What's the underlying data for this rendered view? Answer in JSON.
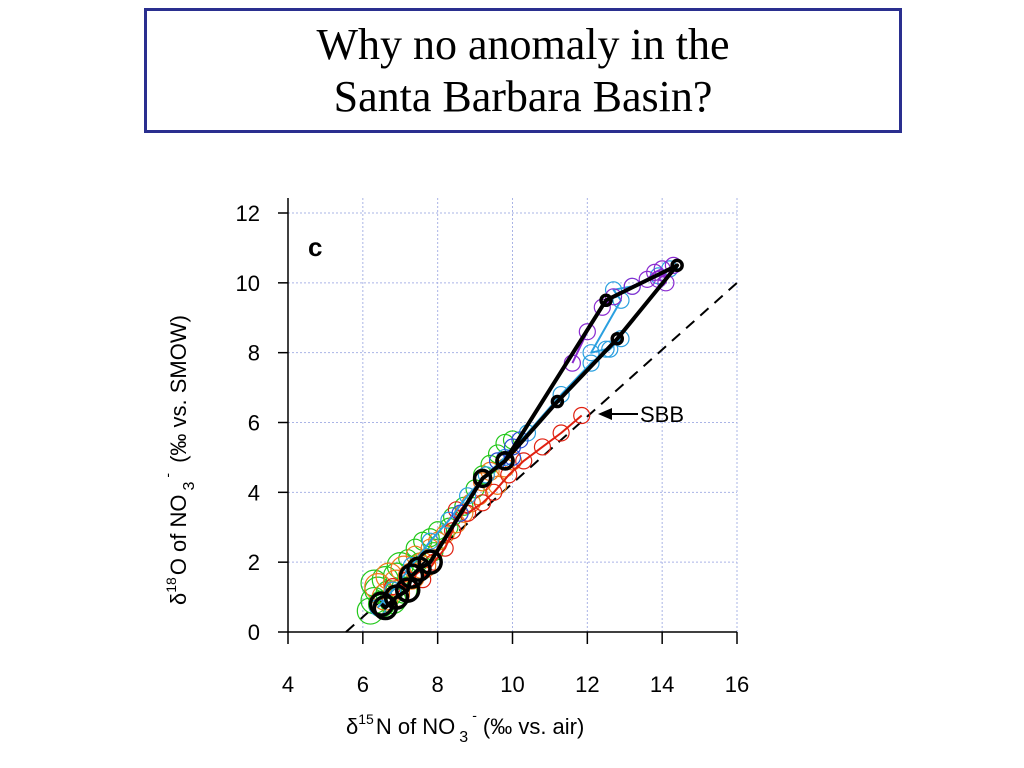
{
  "slide": {
    "title_line1": "Why no anomaly in the",
    "title_line2": "Santa Barbara Basin?"
  },
  "chart_data": {
    "type": "scatter",
    "panel_label": "c",
    "xlim": [
      4,
      16
    ],
    "ylim": [
      0,
      12
    ],
    "xticks": [
      "4",
      "6",
      "8",
      "10",
      "12",
      "14",
      "16"
    ],
    "yticks": [
      "0",
      "2",
      "4",
      "6",
      "8",
      "10",
      "12"
    ],
    "xlabel": {
      "delta": "δ",
      "sup": "15",
      "main": "N of NO",
      "sub": "3",
      "sup2": "-",
      "units": "(‰ vs. air)"
    },
    "ylabel": {
      "delta": "δ",
      "sup": "18",
      "main": "O of NO",
      "sub": "3",
      "sup2": "-",
      "units": "(‰ vs. SMOW)"
    },
    "grid": true,
    "reference_line": {
      "style": "dashed",
      "color": "#000000",
      "points": [
        [
          5.55,
          0
        ],
        [
          16,
          10
        ]
      ]
    },
    "annotation": {
      "text": "SBB",
      "arrow_to": [
        12.15,
        6.15
      ]
    },
    "colors": {
      "red": "#e02010",
      "orange": "#f07a1a",
      "green": "#22c81a",
      "cyan": "#2aa0e0",
      "blue": "#2a4ad8",
      "purple": "#8a2ad0",
      "black": "#000000"
    },
    "series": [
      {
        "color": "green",
        "markers": "open-circle",
        "line": false,
        "points": [
          [
            6.2,
            0.6
          ],
          [
            6.3,
            0.9
          ],
          [
            6.4,
            1.2
          ],
          [
            6.3,
            1.4
          ],
          [
            6.6,
            1.5
          ],
          [
            6.7,
            1.1
          ],
          [
            6.9,
            1.6
          ],
          [
            7.0,
            1.9
          ],
          [
            7.2,
            2.1
          ],
          [
            7.4,
            2.4
          ],
          [
            7.6,
            2.6
          ],
          [
            7.8,
            2.7
          ],
          [
            8.0,
            2.9
          ],
          [
            8.3,
            3.0
          ],
          [
            8.4,
            3.3
          ],
          [
            8.7,
            3.6
          ],
          [
            9.0,
            4.1
          ],
          [
            9.2,
            4.5
          ],
          [
            9.4,
            4.8
          ],
          [
            9.6,
            5.1
          ],
          [
            9.8,
            5.4
          ],
          [
            10.0,
            5.5
          ],
          [
            6.5,
            0.8
          ],
          [
            6.8,
            0.9
          ],
          [
            7.1,
            1.2
          ],
          [
            7.5,
            2.0
          ],
          [
            7.9,
            2.3
          ]
        ]
      },
      {
        "color": "orange",
        "markers": "open-circle",
        "line": false,
        "points": [
          [
            6.4,
            1.3
          ],
          [
            6.7,
            1.6
          ],
          [
            6.9,
            1.4
          ],
          [
            7.1,
            1.8
          ],
          [
            7.3,
            1.6
          ],
          [
            7.4,
            2.2
          ],
          [
            7.6,
            1.9
          ],
          [
            7.8,
            2.4
          ],
          [
            7.7,
            2.1
          ],
          [
            8.0,
            2.6
          ],
          [
            8.2,
            2.8
          ],
          [
            8.5,
            3.1
          ],
          [
            8.7,
            3.4
          ],
          [
            8.9,
            3.7
          ],
          [
            9.1,
            3.9
          ],
          [
            9.2,
            4.3
          ],
          [
            9.4,
            4.6
          ],
          [
            9.6,
            4.2
          ],
          [
            9.8,
            4.7
          ],
          [
            10.0,
            4.9
          ],
          [
            6.6,
            1.0
          ],
          [
            6.9,
            1.1
          ]
        ]
      },
      {
        "color": "red",
        "markers": "open-circle",
        "line": true,
        "points": [
          [
            6.8,
            1.3
          ],
          [
            7.2,
            1.5
          ],
          [
            7.6,
            1.5
          ],
          [
            7.9,
            2.0
          ],
          [
            8.2,
            2.4
          ],
          [
            8.4,
            2.9
          ],
          [
            8.5,
            3.5
          ],
          [
            8.8,
            3.4
          ],
          [
            9.2,
            3.7
          ],
          [
            9.5,
            4.0
          ],
          [
            9.9,
            4.5
          ],
          [
            10.3,
            4.9
          ],
          [
            10.8,
            5.3
          ],
          [
            11.3,
            5.7
          ],
          [
            11.85,
            6.2
          ]
        ]
      },
      {
        "color": "cyan",
        "markers": "open-circle",
        "line": true,
        "points": [
          [
            6.4,
            0.7
          ],
          [
            6.8,
            1.2
          ],
          [
            7.3,
            1.9
          ],
          [
            7.8,
            2.6
          ],
          [
            8.3,
            3.2
          ],
          [
            8.8,
            3.9
          ],
          [
            9.3,
            4.5
          ],
          [
            9.8,
            5.0
          ],
          [
            10.4,
            5.7
          ],
          [
            11.3,
            6.8
          ],
          [
            12.1,
            7.7
          ],
          [
            12.6,
            8.1
          ],
          [
            12.9,
            8.4
          ],
          [
            12.5,
            8.1
          ],
          [
            12.1,
            8.0
          ],
          [
            12.9,
            9.5
          ],
          [
            12.7,
            9.8
          ],
          [
            13.2,
            9.9
          ],
          [
            13.9,
            10.2
          ],
          [
            14.2,
            10.4
          ]
        ]
      },
      {
        "color": "blue",
        "markers": "open-circle",
        "line": false,
        "points": [
          [
            8.6,
            3.4
          ],
          [
            9.6,
            4.9
          ],
          [
            10.0,
            5.3
          ],
          [
            10.2,
            5.5
          ],
          [
            10.0,
            5.0
          ]
        ]
      },
      {
        "color": "purple",
        "markers": "open-circle",
        "line": true,
        "points": [
          [
            11.6,
            7.7
          ],
          [
            12.0,
            8.6
          ],
          [
            12.4,
            9.3
          ],
          [
            12.7,
            9.6
          ],
          [
            13.2,
            9.9
          ],
          [
            13.6,
            10.1
          ],
          [
            13.8,
            10.3
          ],
          [
            14.0,
            10.4
          ],
          [
            14.1,
            10.0
          ],
          [
            13.9,
            10.1
          ],
          [
            14.3,
            10.5
          ]
        ]
      },
      {
        "color": "black",
        "markers": "open-circle",
        "line": true,
        "line_width": 4,
        "points": [
          [
            6.5,
            0.8
          ],
          [
            6.6,
            0.7
          ],
          [
            6.9,
            1.0
          ],
          [
            7.2,
            1.2
          ],
          [
            7.3,
            1.6
          ],
          [
            7.5,
            1.8
          ],
          [
            7.8,
            2.0
          ],
          [
            9.2,
            4.4
          ],
          [
            9.8,
            4.9
          ],
          [
            11.2,
            6.6
          ],
          [
            12.8,
            8.4
          ],
          [
            14.4,
            10.5
          ],
          [
            12.5,
            9.5
          ],
          [
            9.8,
            4.9
          ]
        ]
      }
    ]
  }
}
